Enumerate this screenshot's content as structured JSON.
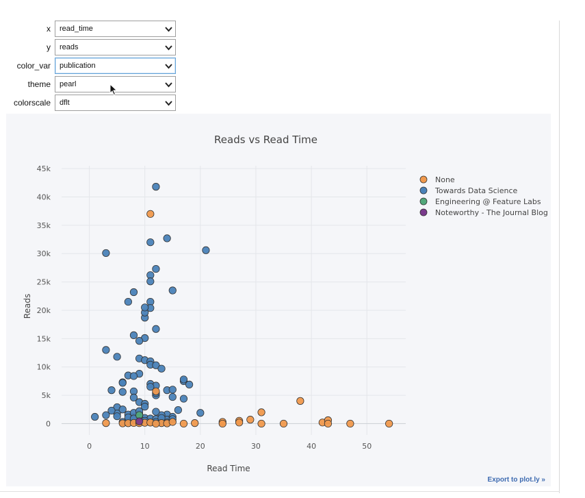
{
  "controls": {
    "x": {
      "label": "x",
      "value": "read_time"
    },
    "y": {
      "label": "y",
      "value": "reads"
    },
    "color_var": {
      "label": "color_var",
      "value": "publication"
    },
    "theme": {
      "label": "theme",
      "value": "pearl"
    },
    "colorscale": {
      "label": "colorscale",
      "value": "dflt"
    }
  },
  "export_label": "Export to plot.ly »",
  "chart_data": {
    "type": "scatter",
    "title": "Reads vs Read Time",
    "xlabel": "Read Time",
    "ylabel": "Reads",
    "xlim": [
      -5,
      57
    ],
    "ylim": [
      -2000,
      45500
    ],
    "xticks": [
      0,
      10,
      20,
      30,
      40,
      50
    ],
    "yticks": [
      0,
      5000,
      10000,
      15000,
      20000,
      25000,
      30000,
      35000,
      40000,
      45000
    ],
    "ytick_labels": [
      "0",
      "5k",
      "10k",
      "15k",
      "20k",
      "25k",
      "30k",
      "35k",
      "40k",
      "45k"
    ],
    "grid": true,
    "legend_position": "top-right",
    "series": [
      {
        "name": "None",
        "color": "#f0994d",
        "x": [
          3,
          6,
          7,
          8,
          9,
          10,
          11,
          12,
          13,
          14,
          11,
          12,
          15,
          17,
          19,
          24,
          24,
          27,
          27,
          29,
          31,
          31,
          35,
          38,
          42,
          43,
          43,
          47,
          54
        ],
        "y": [
          100,
          50,
          80,
          120,
          90,
          150,
          37000,
          5700,
          100,
          50,
          200,
          0,
          300,
          0,
          100,
          300,
          0,
          500,
          200,
          700,
          2000,
          0,
          0,
          4000,
          200,
          600,
          0,
          0,
          0
        ]
      },
      {
        "name": "Towards Data Science",
        "color": "#4a82b8",
        "x": [
          12,
          11,
          14,
          11,
          21,
          3,
          12,
          11,
          11,
          15,
          7,
          8,
          11,
          10,
          10,
          10,
          12,
          8,
          10,
          9,
          3,
          5,
          9,
          10,
          11,
          11,
          12,
          13,
          7,
          9,
          8,
          11,
          12,
          17,
          17,
          18,
          6,
          6,
          11,
          12,
          4,
          8,
          14,
          15,
          8,
          9,
          12,
          15,
          17,
          16,
          6,
          5,
          10,
          14,
          20,
          1,
          3,
          5,
          6,
          7,
          8,
          9,
          10,
          11,
          12,
          13,
          14,
          15,
          6,
          7,
          8,
          9,
          10,
          11,
          12,
          13,
          14,
          5,
          7,
          8,
          9,
          15,
          13,
          12,
          10,
          4,
          8
        ],
        "y": [
          41800,
          32000,
          32700,
          26200,
          30600,
          30100,
          27300,
          25100,
          21500,
          23500,
          21500,
          23200,
          20400,
          18700,
          19600,
          20500,
          16700,
          15600,
          15100,
          14600,
          13000,
          11800,
          11500,
          11200,
          11000,
          10400,
          10300,
          9700,
          8500,
          8800,
          8400,
          7000,
          6700,
          7500,
          7800,
          6900,
          7300,
          7200,
          6500,
          5000,
          5900,
          5700,
          5900,
          6000,
          4600,
          3800,
          5400,
          4700,
          4400,
          2400,
          5600,
          2900,
          3500,
          1600,
          1900,
          1200,
          1500,
          1800,
          2500,
          1600,
          1200,
          1700,
          1000,
          900,
          800,
          1500,
          700,
          1200,
          300,
          400,
          600,
          1000,
          500,
          200,
          300,
          400,
          200,
          1300,
          1100,
          1900,
          2200,
          800,
          1000,
          2100,
          3000,
          2300,
          900
        ]
      },
      {
        "name": "Engineering @ Feature Labs",
        "color": "#52a87a",
        "x": [
          9
        ],
        "y": [
          1500
        ]
      },
      {
        "name": "Noteworthy - The Journal Blog",
        "color": "#7a3a8c",
        "x": [
          9
        ],
        "y": [
          400
        ]
      }
    ]
  }
}
